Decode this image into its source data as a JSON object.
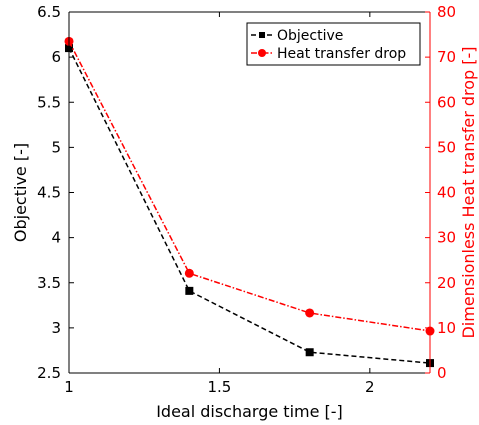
{
  "chart_data": {
    "type": "line",
    "title": "",
    "xlabel": "Ideal discharge time [-]",
    "xlim": [
      1,
      2.2
    ],
    "xticks": [
      1,
      1.5,
      2
    ],
    "y_left": {
      "label": "Objective [-]",
      "lim": [
        2.5,
        6.5
      ],
      "ticks": [
        "2.5",
        "3",
        "3.5",
        "4",
        "4.5",
        "5",
        "5.5",
        "6",
        "6.5"
      ],
      "color": "#000000"
    },
    "y_right": {
      "label": "Dimensionless Heat transfer drop [-]",
      "lim": [
        0,
        80
      ],
      "ticks": [
        "0",
        "10",
        "20",
        "30",
        "40",
        "50",
        "60",
        "70",
        "80"
      ],
      "color": "#ff0000"
    },
    "grid": false,
    "legend_position": "top-right",
    "series": [
      {
        "name": "Objective",
        "axis": "left",
        "color": "#000000",
        "line_style": "dashed",
        "marker": "square",
        "x": [
          1.0,
          1.4,
          1.8,
          2.2
        ],
        "y": [
          6.1,
          3.41,
          2.73,
          2.61
        ]
      },
      {
        "name": "Heat transfer drop",
        "axis": "right",
        "color": "#ff0000",
        "line_style": "dash-dot",
        "marker": "circle",
        "x": [
          1.0,
          1.4,
          1.8,
          2.2
        ],
        "y": [
          73.5,
          22.1,
          13.3,
          9.3
        ]
      }
    ]
  }
}
